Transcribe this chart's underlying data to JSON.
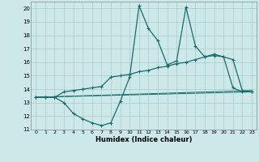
{
  "xlabel": "Humidex (Indice chaleur)",
  "xlim": [
    -0.5,
    23.5
  ],
  "ylim": [
    11,
    20.5
  ],
  "yticks": [
    11,
    12,
    13,
    14,
    15,
    16,
    17,
    18,
    19,
    20
  ],
  "xticks": [
    0,
    1,
    2,
    3,
    4,
    5,
    6,
    7,
    8,
    9,
    10,
    11,
    12,
    13,
    14,
    15,
    16,
    17,
    18,
    19,
    20,
    21,
    22,
    23
  ],
  "bg_color": "#cde8e8",
  "line_color": "#1a6b6b",
  "grid_color": "#a8cccc",
  "line1_x": [
    0,
    1,
    2,
    3,
    4,
    5,
    6,
    7,
    8,
    9,
    10,
    11,
    12,
    13,
    14,
    15,
    16,
    17,
    18,
    19,
    20,
    21,
    22,
    23
  ],
  "line1_y": [
    13.4,
    13.4,
    13.4,
    13.0,
    12.2,
    11.8,
    11.5,
    11.3,
    11.5,
    13.1,
    14.9,
    20.2,
    18.5,
    17.6,
    15.8,
    16.1,
    20.1,
    17.2,
    16.4,
    16.5,
    16.4,
    14.1,
    13.8,
    13.8
  ],
  "line2_x": [
    0,
    1,
    2,
    3,
    4,
    5,
    6,
    7,
    8,
    9,
    10,
    11,
    12,
    13,
    14,
    15,
    16,
    17,
    18,
    19,
    20,
    21,
    22,
    23
  ],
  "line2_y": [
    13.4,
    13.4,
    13.4,
    13.8,
    13.9,
    14.0,
    14.1,
    14.2,
    14.9,
    15.0,
    15.1,
    15.3,
    15.4,
    15.6,
    15.7,
    15.9,
    16.0,
    16.2,
    16.4,
    16.6,
    16.4,
    16.2,
    13.9,
    13.8
  ],
  "line3_x": [
    0,
    23
  ],
  "line3_y": [
    13.4,
    13.8
  ],
  "line4_x": [
    0,
    23
  ],
  "line4_y": [
    13.4,
    13.9
  ]
}
